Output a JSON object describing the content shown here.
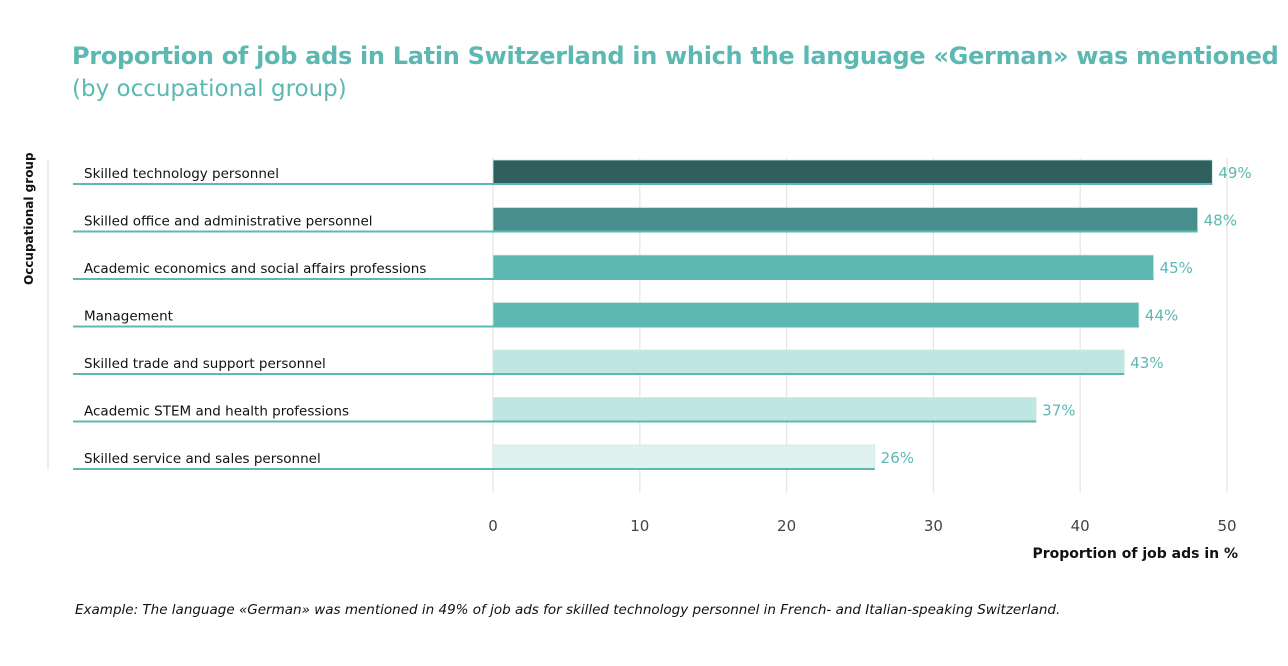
{
  "chart_data": {
    "type": "bar",
    "orientation": "horizontal",
    "title": "Proportion of job ads in Latin Switzerland in which the language «German» was mentioned",
    "subtitle": "(by occupational group)",
    "ylabel": "Occupational group",
    "xlabel": "Proportion of job ads in %",
    "categories": [
      "Skilled technology personnel",
      "Skilled office and administrative personnel",
      "Academic economics and social affairs professions",
      "Management",
      "Skilled trade and support personnel",
      "Academic STEM and health professions",
      "Skilled service and sales personnel"
    ],
    "values": [
      49,
      48,
      45,
      44,
      43,
      37,
      26
    ],
    "value_labels": [
      "49%",
      "48%",
      "45%",
      "44%",
      "43%",
      "37%",
      "26%"
    ],
    "colors": [
      "#2f5f5f",
      "#478e8c",
      "#5cb8b2",
      "#5cb8b2",
      "#bfe6e3",
      "#bfe6e3",
      "#dff2f0"
    ],
    "xlim": [
      0,
      50
    ],
    "xticks": [
      0,
      10,
      20,
      30,
      40,
      50
    ],
    "grid": true,
    "accent_color": "#5cb8b2",
    "note": "Example: The language «German» was mentioned in 49% of job ads for skilled technology personnel in French- and Italian-speaking Switzerland."
  }
}
